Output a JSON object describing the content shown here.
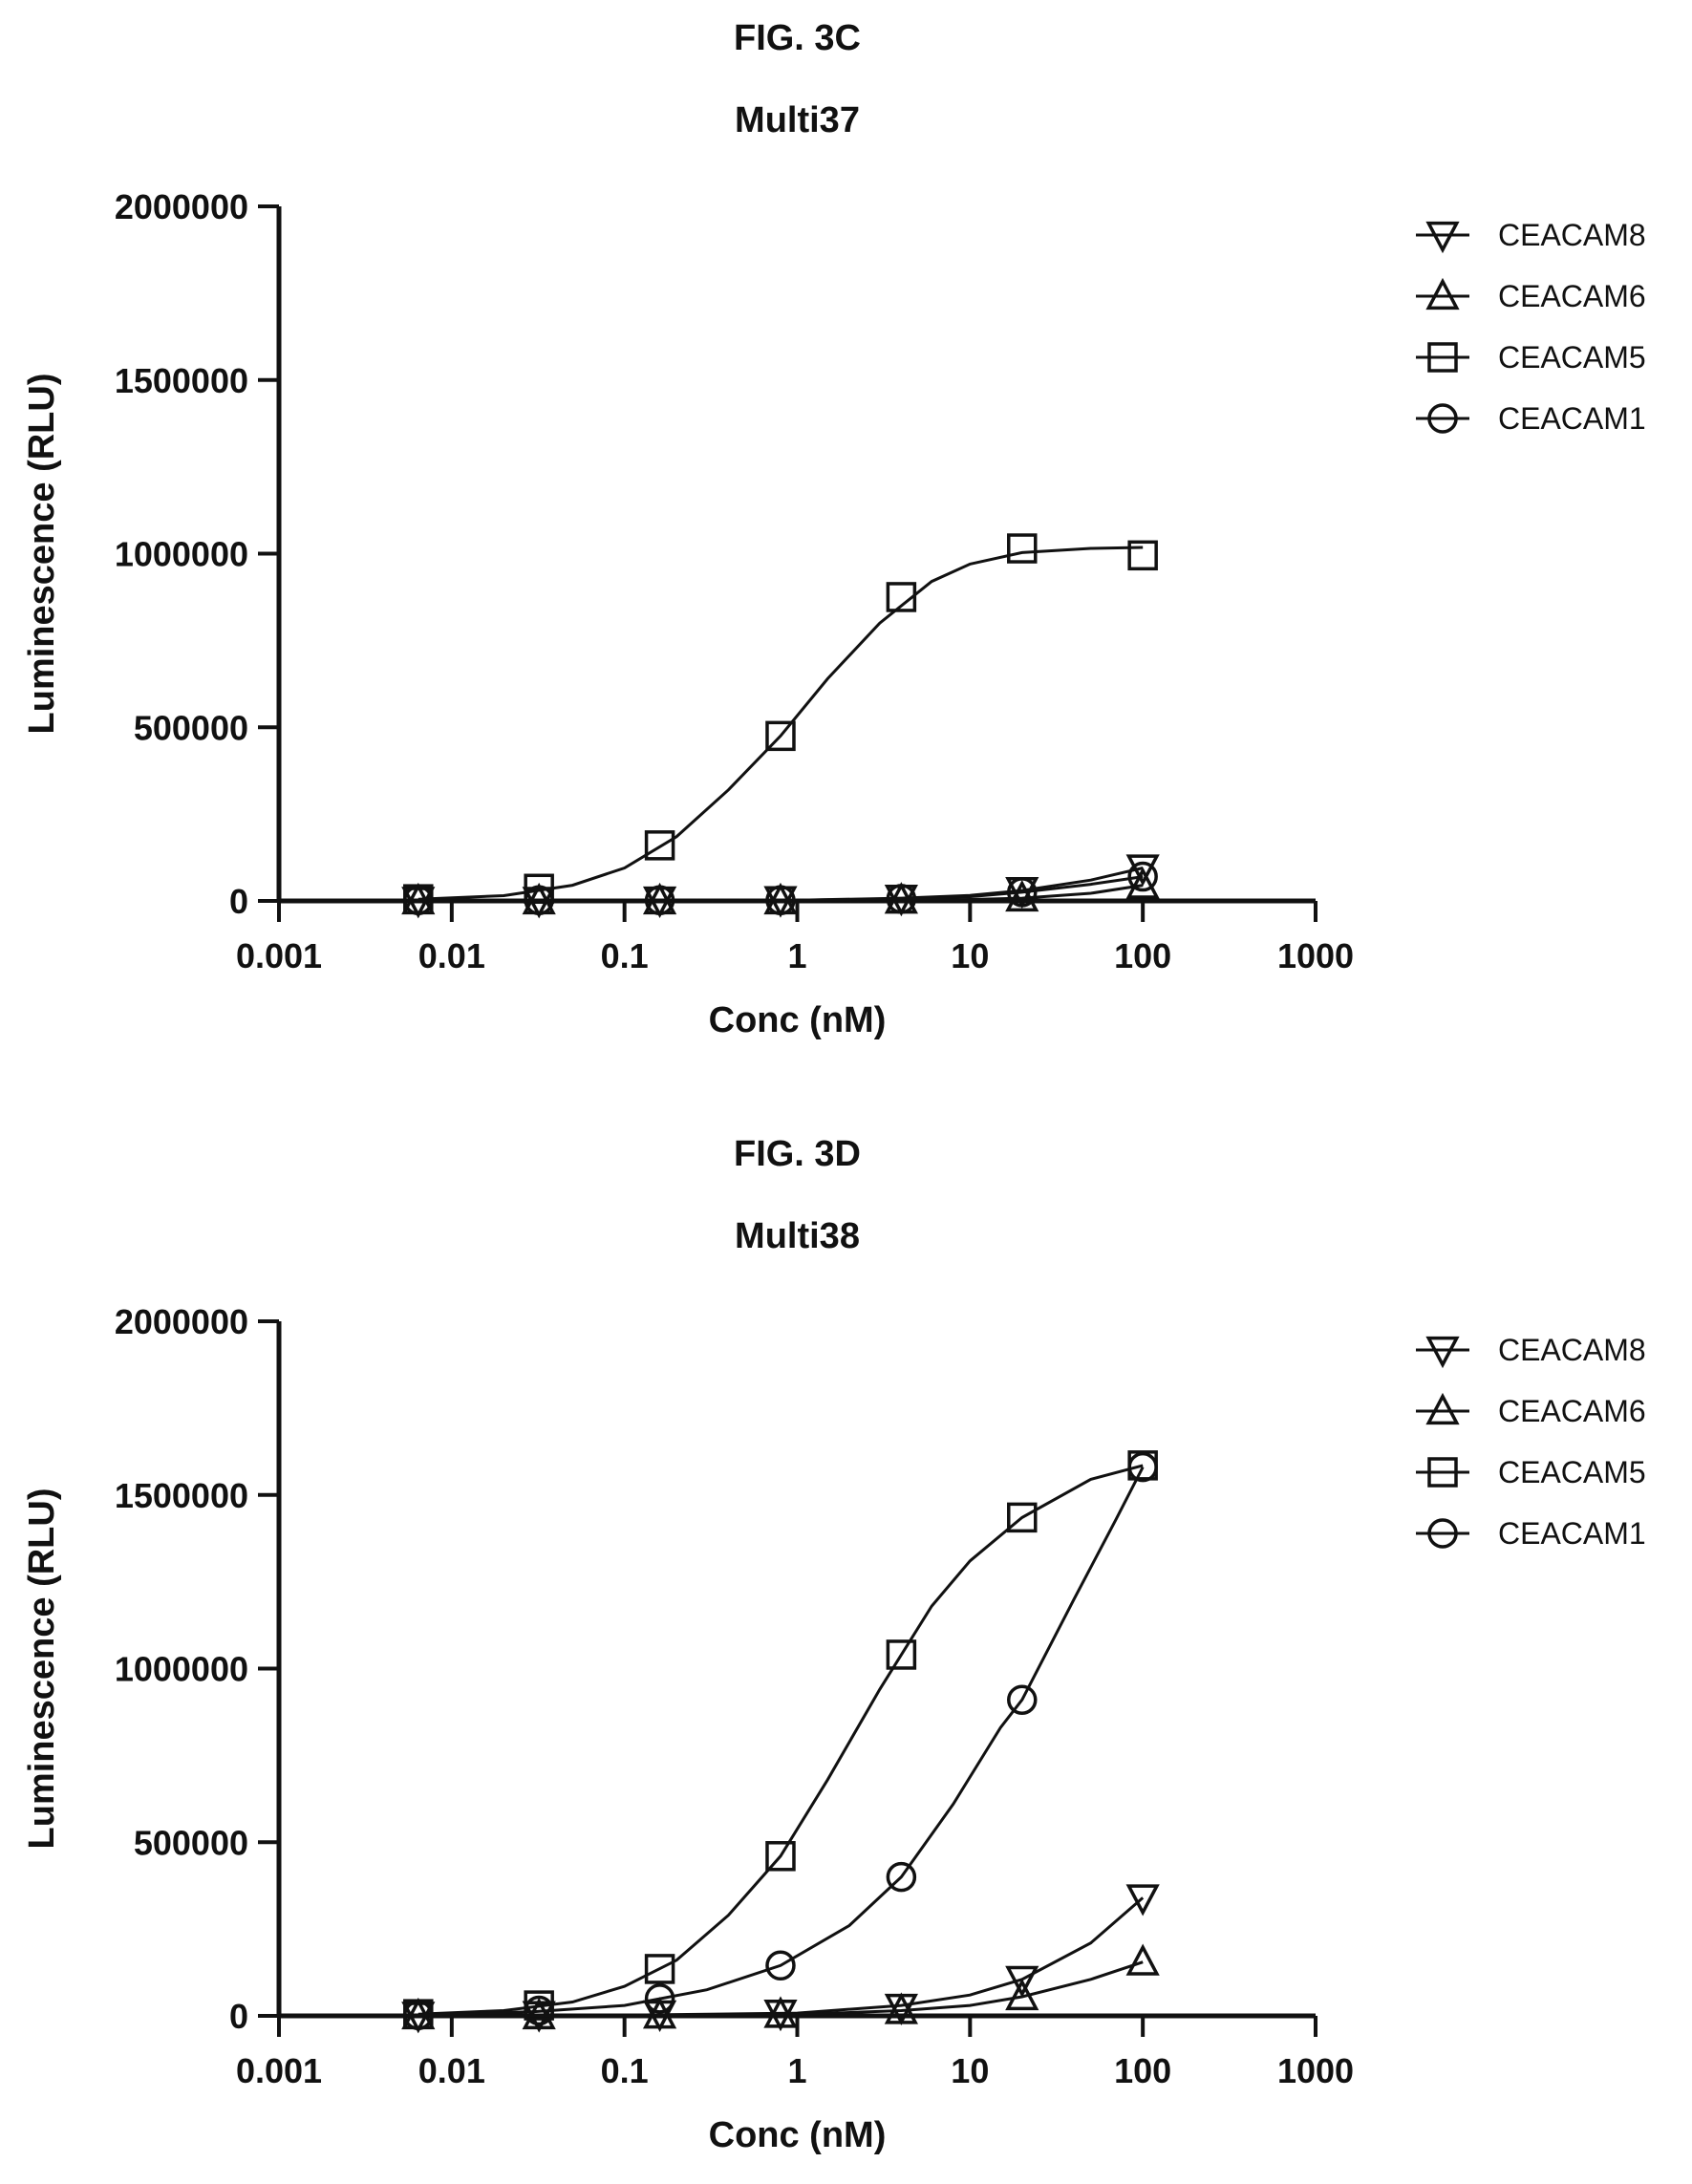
{
  "chart_data": [
    {
      "type": "scatter",
      "figure_label": "FIG. 3C",
      "title": "Multi37",
      "xlabel": "Conc (nM)",
      "ylabel": "Luminescence (RLU)",
      "xscale": "log",
      "xlim": [
        0.001,
        1000
      ],
      "ylim": [
        0,
        2000000
      ],
      "x_ticks": [
        0.001,
        0.01,
        0.1,
        1,
        10,
        100,
        1000
      ],
      "x_tick_labels": [
        "0.001",
        "0.01",
        "0.1",
        "1",
        "10",
        "100",
        "1000"
      ],
      "y_ticks": [
        0,
        500000,
        1000000,
        1500000,
        2000000
      ],
      "y_tick_labels": [
        "0",
        "500000",
        "1000000",
        "1500000",
        "2000000"
      ],
      "grid": false,
      "legend_position": "top-right",
      "series": [
        {
          "name": "CEACAM8",
          "marker": "triangle-down",
          "x": [
            0.0064,
            0.032,
            0.16,
            0.8,
            4,
            20,
            100
          ],
          "y": [
            2000,
            2000,
            3000,
            4000,
            8000,
            30000,
            95000
          ],
          "fit": [
            [
              0.0064,
              0
            ],
            [
              1,
              2000
            ],
            [
              4,
              8000
            ],
            [
              10,
              16000
            ],
            [
              20,
              30000
            ],
            [
              50,
              60000
            ],
            [
              100,
              95000
            ]
          ]
        },
        {
          "name": "CEACAM6",
          "marker": "triangle-up",
          "x": [
            0.0064,
            0.032,
            0.16,
            0.8,
            4,
            20,
            100
          ],
          "y": [
            0,
            0,
            0,
            0,
            2000,
            8000,
            45000
          ],
          "fit": [
            [
              0.0064,
              0
            ],
            [
              1,
              0
            ],
            [
              4,
              2000
            ],
            [
              10,
              4000
            ],
            [
              20,
              8000
            ],
            [
              50,
              22000
            ],
            [
              100,
              45000
            ]
          ]
        },
        {
          "name": "CEACAM5",
          "marker": "square",
          "x": [
            0.0064,
            0.032,
            0.16,
            0.8,
            4,
            20,
            100
          ],
          "y": [
            5000,
            35000,
            160000,
            475000,
            875000,
            1015000,
            995000
          ],
          "fit": [
            [
              0.0064,
              5000
            ],
            [
              0.02,
              15000
            ],
            [
              0.05,
              45000
            ],
            [
              0.1,
              95000
            ],
            [
              0.2,
              185000
            ],
            [
              0.4,
              320000
            ],
            [
              0.8,
              475000
            ],
            [
              1.5,
              640000
            ],
            [
              3,
              800000
            ],
            [
              6,
              920000
            ],
            [
              10,
              970000
            ],
            [
              20,
              1003000
            ],
            [
              50,
              1015000
            ],
            [
              100,
              1018000
            ]
          ]
        },
        {
          "name": "CEACAM1",
          "marker": "circle",
          "x": [
            0.0064,
            0.032,
            0.16,
            0.8,
            4,
            20,
            100
          ],
          "y": [
            2000,
            2000,
            2000,
            2000,
            6000,
            25000,
            70000
          ],
          "fit": [
            [
              0.0064,
              0
            ],
            [
              1,
              2000
            ],
            [
              4,
              6000
            ],
            [
              10,
              12000
            ],
            [
              20,
              25000
            ],
            [
              50,
              48000
            ],
            [
              100,
              70000
            ]
          ]
        }
      ]
    },
    {
      "type": "scatter",
      "figure_label": "FIG. 3D",
      "title": "Multi38",
      "xlabel": "Conc (nM)",
      "ylabel": "Luminescence (RLU)",
      "xscale": "log",
      "xlim": [
        0.001,
        1000
      ],
      "ylim": [
        0,
        2000000
      ],
      "x_ticks": [
        0.001,
        0.01,
        0.1,
        1,
        10,
        100,
        1000
      ],
      "x_tick_labels": [
        "0.001",
        "0.01",
        "0.1",
        "1",
        "10",
        "100",
        "1000"
      ],
      "y_ticks": [
        0,
        500000,
        1000000,
        1500000,
        2000000
      ],
      "y_tick_labels": [
        "0",
        "500000",
        "1000000",
        "1500000",
        "2000000"
      ],
      "grid": false,
      "legend_position": "top-right",
      "series": [
        {
          "name": "CEACAM8",
          "marker": "triangle-down",
          "x": [
            0.0064,
            0.032,
            0.16,
            0.8,
            4,
            20,
            100
          ],
          "y": [
            2000,
            4000,
            6000,
            8000,
            25000,
            105000,
            340000
          ],
          "fit": [
            [
              0.0064,
              0
            ],
            [
              0.1,
              2000
            ],
            [
              1,
              8000
            ],
            [
              4,
              30000
            ],
            [
              10,
              60000
            ],
            [
              20,
              105000
            ],
            [
              50,
              210000
            ],
            [
              100,
              340000
            ]
          ]
        },
        {
          "name": "CEACAM6",
          "marker": "triangle-up",
          "x": [
            0.0064,
            0.032,
            0.16,
            0.8,
            4,
            20,
            100
          ],
          "y": [
            0,
            0,
            2000,
            4000,
            15000,
            55000,
            155000
          ],
          "fit": [
            [
              0.0064,
              0
            ],
            [
              0.1,
              1000
            ],
            [
              1,
              4000
            ],
            [
              4,
              15000
            ],
            [
              10,
              30000
            ],
            [
              20,
              55000
            ],
            [
              50,
              105000
            ],
            [
              100,
              155000
            ]
          ]
        },
        {
          "name": "CEACAM5",
          "marker": "square",
          "x": [
            0.0064,
            0.032,
            0.16,
            0.8,
            4,
            20,
            100
          ],
          "y": [
            5000,
            30000,
            135000,
            460000,
            1040000,
            1435000,
            1585000
          ],
          "fit": [
            [
              0.0064,
              5000
            ],
            [
              0.02,
              15000
            ],
            [
              0.05,
              40000
            ],
            [
              0.1,
              85000
            ],
            [
              0.2,
              160000
            ],
            [
              0.4,
              290000
            ],
            [
              0.8,
              460000
            ],
            [
              1.5,
              680000
            ],
            [
              3,
              940000
            ],
            [
              6,
              1180000
            ],
            [
              10,
              1310000
            ],
            [
              20,
              1435000
            ],
            [
              50,
              1545000
            ],
            [
              100,
              1585000
            ]
          ]
        },
        {
          "name": "CEACAM1",
          "marker": "circle",
          "x": [
            0.0064,
            0.032,
            0.16,
            0.8,
            4,
            20,
            100
          ],
          "y": [
            2000,
            15000,
            50000,
            145000,
            400000,
            910000,
            1580000
          ],
          "fit": [
            [
              0.0064,
              2000
            ],
            [
              0.03,
              12000
            ],
            [
              0.1,
              30000
            ],
            [
              0.3,
              75000
            ],
            [
              0.8,
              145000
            ],
            [
              2,
              260000
            ],
            [
              4,
              400000
            ],
            [
              8,
              610000
            ],
            [
              15,
              830000
            ],
            [
              20,
              910000
            ],
            [
              40,
              1200000
            ],
            [
              70,
              1430000
            ],
            [
              100,
              1580000
            ]
          ]
        }
      ]
    }
  ]
}
